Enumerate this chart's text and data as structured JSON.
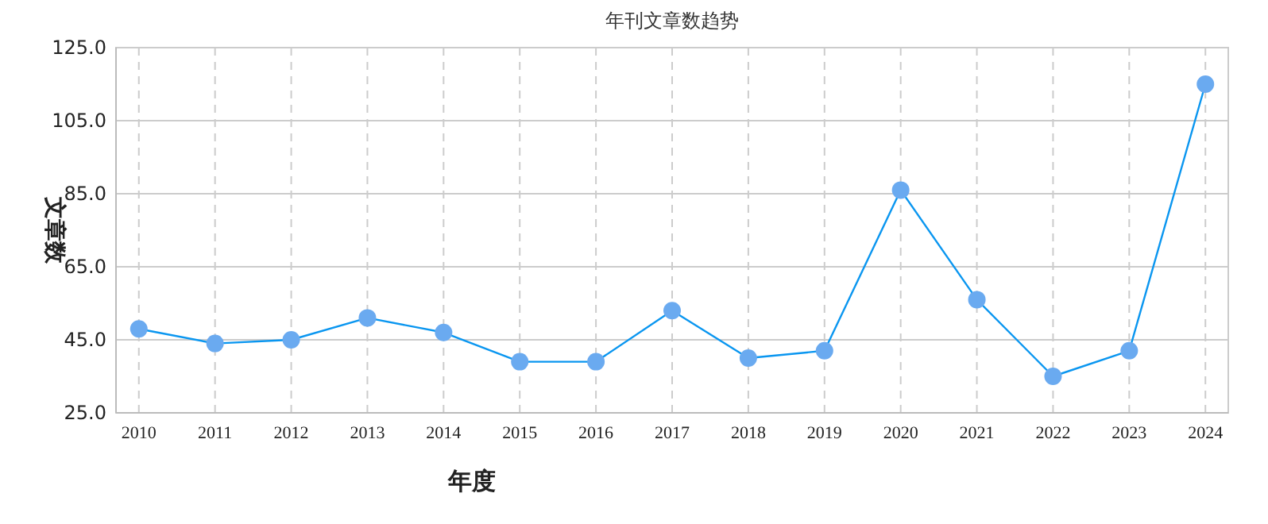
{
  "chart_data": {
    "type": "line",
    "title": "年刊文章数趋势",
    "xlabel": "年度",
    "ylabel": "文章数",
    "categories": [
      "2010",
      "2011",
      "2012",
      "2013",
      "2014",
      "2015",
      "2016",
      "2017",
      "2018",
      "2019",
      "2020",
      "2021",
      "2022",
      "2023",
      "2024"
    ],
    "series": [
      {
        "color": "#0a96f0",
        "values": [
          48,
          44,
          45,
          51,
          47,
          39,
          39,
          53,
          40,
          42,
          86,
          56,
          35,
          42,
          115
        ]
      }
    ],
    "ylim": [
      25,
      125
    ],
    "yticks": [
      {
        "value": 25,
        "label": "25.0"
      },
      {
        "value": 45,
        "label": "45.0"
      },
      {
        "value": 65,
        "label": "65.0"
      },
      {
        "value": 85,
        "label": "85.0"
      },
      {
        "value": 105,
        "label": "105.0"
      },
      {
        "value": 125,
        "label": "125.0"
      }
    ],
    "grid": true,
    "marker": "circle",
    "line_style": "solid"
  }
}
